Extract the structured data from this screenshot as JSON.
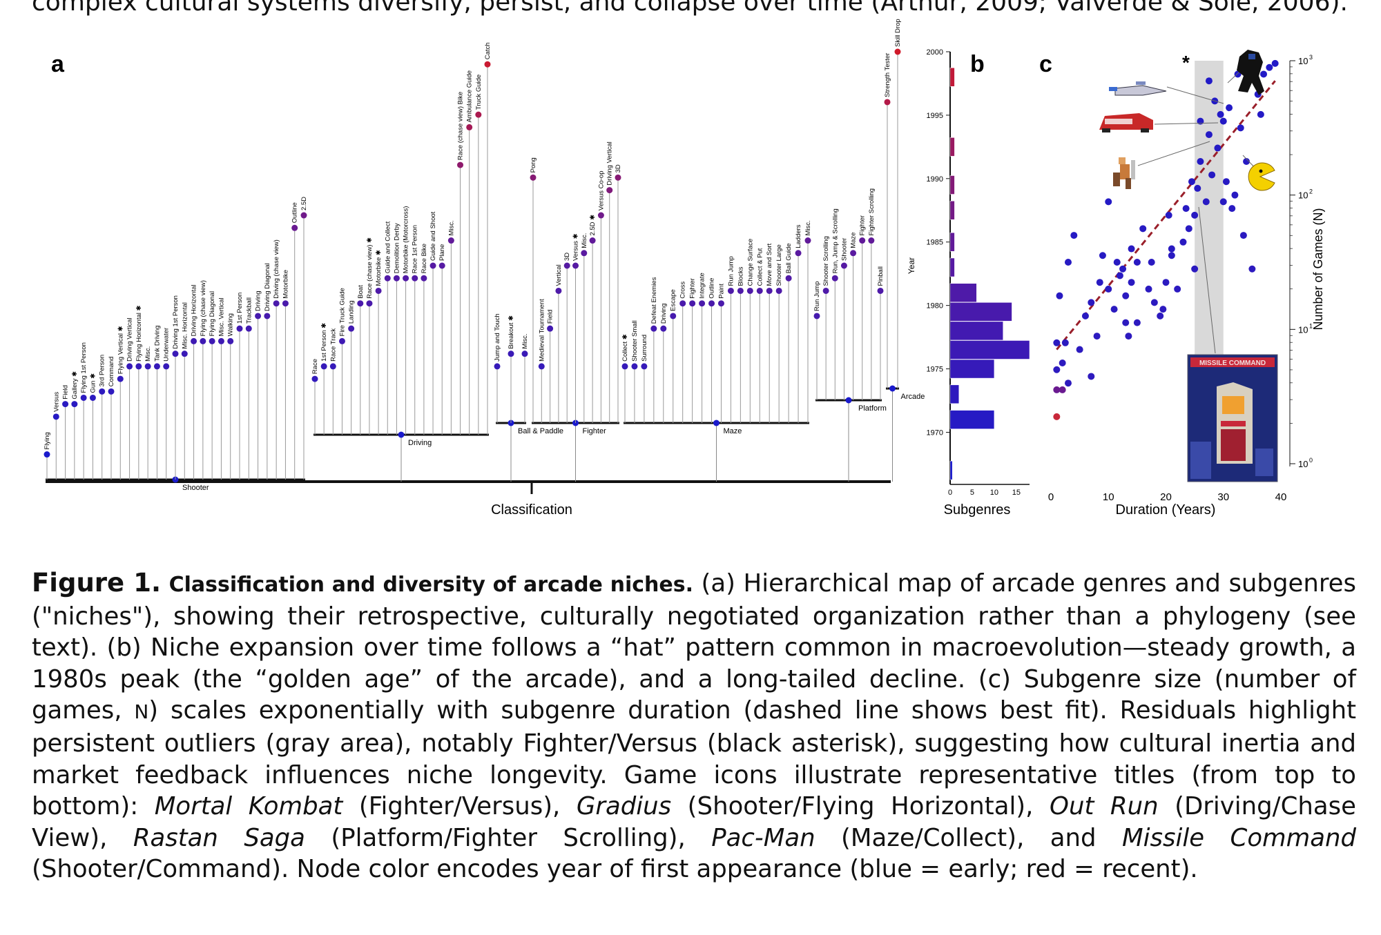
{
  "top_text": "complex cultural systems diversify, persist, and collapse over time (Arthur, 2009; Valverde & Solé, 2006).",
  "panel_letters": {
    "a": "a",
    "b": "b",
    "c": "c"
  },
  "panel_a": {
    "axis_label": "Classification",
    "groups": [
      {
        "name": "Shooter",
        "leaves": [
          {
            "label": "Flying",
            "y": 1968
          },
          {
            "label": "Versus",
            "y": 1971
          },
          {
            "label": "Field",
            "y": 1972
          },
          {
            "label": "Gallery ✱",
            "y": 1972
          },
          {
            "label": "Flying 1st Person",
            "y": 1972.5
          },
          {
            "label": "Gun ✱",
            "y": 1972.5
          },
          {
            "label": "3rd Person",
            "y": 1973
          },
          {
            "label": "Command",
            "y": 1973
          },
          {
            "label": "Flying Vertical ✱",
            "y": 1974
          },
          {
            "label": "Driving Vertical",
            "y": 1975
          },
          {
            "label": "Flying Horizontal ✱",
            "y": 1975
          },
          {
            "label": "Misc.",
            "y": 1975
          },
          {
            "label": "Tank Driving",
            "y": 1975
          },
          {
            "label": "Underwater",
            "y": 1975
          },
          {
            "label": "Driving 1st Person",
            "y": 1976
          },
          {
            "label": "Misc. Horizontal",
            "y": 1976
          },
          {
            "label": "Driving Horizontal",
            "y": 1977
          },
          {
            "label": "Flying (chase view)",
            "y": 1977
          },
          {
            "label": "Flying Diagonal",
            "y": 1977
          },
          {
            "label": "Misc. Vertical",
            "y": 1977
          },
          {
            "label": "Walking",
            "y": 1977
          },
          {
            "label": "1st Person",
            "y": 1978
          },
          {
            "label": "Trackball",
            "y": 1978
          },
          {
            "label": "Driving",
            "y": 1979
          },
          {
            "label": "Driving Diagonal",
            "y": 1979
          },
          {
            "label": "Driving (chase view)",
            "y": 1980
          },
          {
            "label": "Motorbike",
            "y": 1980
          },
          {
            "label": "Outline",
            "y": 1986
          },
          {
            "label": "2.5D",
            "y": 1987
          }
        ]
      },
      {
        "name": "Driving",
        "leaves": [
          {
            "label": "Race",
            "y": 1974
          },
          {
            "label": "1st Person ✱",
            "y": 1975
          },
          {
            "label": "Race Track",
            "y": 1975
          },
          {
            "label": "Fire Truck Guide",
            "y": 1977
          },
          {
            "label": "Landing",
            "y": 1978
          },
          {
            "label": "Boat",
            "y": 1980
          },
          {
            "label": "Race (chase view) ✱",
            "y": 1980
          },
          {
            "label": "Motorbike ✱",
            "y": 1981
          },
          {
            "label": "Guide and Collect",
            "y": 1982
          },
          {
            "label": "Demolition Derby",
            "y": 1982
          },
          {
            "label": "Motorbike (Motorcross)",
            "y": 1982
          },
          {
            "label": "Race 1st Person",
            "y": 1982
          },
          {
            "label": "Race Bike",
            "y": 1982
          },
          {
            "label": "Guide and Shoot",
            "y": 1983
          },
          {
            "label": "Plane",
            "y": 1983
          },
          {
            "label": "Misc.",
            "y": 1985
          },
          {
            "label": "Race (chase view) Bike",
            "y": 1991
          },
          {
            "label": "Ambulance Guide",
            "y": 1994
          },
          {
            "label": "Truck Guide",
            "y": 1995
          },
          {
            "label": "Catch",
            "y": 1999
          }
        ]
      },
      {
        "name": "Ball & Paddle",
        "leaves": [
          {
            "label": "Jump and Touch",
            "y": 1975
          },
          {
            "label": "Breakout ✱",
            "y": 1976
          },
          {
            "label": "Misc.",
            "y": 1976
          }
        ]
      },
      {
        "name": "Fighter",
        "leaves": [
          {
            "label": "Pong",
            "y": 1990
          },
          {
            "label": "Medieval Tournament",
            "y": 1975
          },
          {
            "label": "Field",
            "y": 1978
          },
          {
            "label": "Vertical",
            "y": 1981
          },
          {
            "label": "3D",
            "y": 1983
          },
          {
            "label": "Versus ✱",
            "y": 1983
          },
          {
            "label": "Misc.",
            "y": 1984
          },
          {
            "label": "2.5D ✱",
            "y": 1985
          },
          {
            "label": "Versus Co-op",
            "y": 1987
          },
          {
            "label": "Driving Vertical",
            "y": 1989
          },
          {
            "label": "3D",
            "y": 1990
          }
        ]
      },
      {
        "name": "Maze",
        "leaves": [
          {
            "label": "Collect ✱",
            "y": 1975
          },
          {
            "label": "Shooter Small",
            "y": 1975
          },
          {
            "label": "Surround",
            "y": 1975
          },
          {
            "label": "Defeat Enemies",
            "y": 1978
          },
          {
            "label": "Driving",
            "y": 1978
          },
          {
            "label": "Escape",
            "y": 1979
          },
          {
            "label": "Cross",
            "y": 1980
          },
          {
            "label": "Fighter",
            "y": 1980
          },
          {
            "label": "Integrate",
            "y": 1980
          },
          {
            "label": "Outline",
            "y": 1980
          },
          {
            "label": "Paint",
            "y": 1980
          },
          {
            "label": "Run Jump",
            "y": 1981
          },
          {
            "label": "Blocks",
            "y": 1981
          },
          {
            "label": "Change Surface",
            "y": 1981
          },
          {
            "label": "Collect & Put",
            "y": 1981
          },
          {
            "label": "Move and Sort",
            "y": 1981
          },
          {
            "label": "Shooter Large",
            "y": 1981
          },
          {
            "label": "Ball Guide",
            "y": 1982
          },
          {
            "label": "Ladders",
            "y": 1984
          },
          {
            "label": "Misc.",
            "y": 1985
          }
        ]
      },
      {
        "name": "Platform",
        "leaves": [
          {
            "label": "Run Jump",
            "y": 1979
          },
          {
            "label": "Shooter Scrolling",
            "y": 1981
          },
          {
            "label": "Run, Jump & Scrolling",
            "y": 1982
          },
          {
            "label": "Shooter",
            "y": 1983
          },
          {
            "label": "Maze",
            "y": 1984
          },
          {
            "label": "Fighter",
            "y": 1985
          },
          {
            "label": "Fighter Scrolling",
            "y": 1985
          },
          {
            "label": "Pinball",
            "y": 1981
          }
        ]
      },
      {
        "name": "Arcade",
        "leaves": [
          {
            "label": "Strength Tester",
            "y": 1996
          },
          {
            "label": "Skill Drop",
            "y": 2000
          }
        ]
      }
    ]
  },
  "panel_b": {
    "type": "bar",
    "xlabel": "Subgenres",
    "ylabel": "Year",
    "y_ticks": [
      1970,
      1975,
      1980,
      1985,
      1990,
      1995,
      2000
    ],
    "x_ticks": [
      0,
      5,
      10,
      15
    ],
    "xlim": [
      0,
      18
    ],
    "ylim": [
      1966,
      2000
    ],
    "bars": [
      {
        "year": 1967,
        "value": 0.5
      },
      {
        "year": 1971,
        "value": 10
      },
      {
        "year": 1973,
        "value": 2
      },
      {
        "year": 1975,
        "value": 10
      },
      {
        "year": 1976.5,
        "value": 18
      },
      {
        "year": 1978,
        "value": 12
      },
      {
        "year": 1979.5,
        "value": 14
      },
      {
        "year": 1981,
        "value": 6
      },
      {
        "year": 1983,
        "value": 1
      },
      {
        "year": 1985,
        "value": 1
      },
      {
        "year": 1987.5,
        "value": 1
      },
      {
        "year": 1989.5,
        "value": 1
      },
      {
        "year": 1992.5,
        "value": 1
      },
      {
        "year": 1998,
        "value": 1
      }
    ]
  },
  "panel_c": {
    "type": "scatter",
    "xlabel": "Duration (Years)",
    "ylabel": "Number of Games (N)",
    "x_ticks": [
      0,
      10,
      20,
      30,
      40
    ],
    "xlim": [
      0,
      40
    ],
    "ylim_log10": [
      0,
      3
    ],
    "y_tick_labels": [
      "10",
      "10",
      "10",
      "10"
    ],
    "y_tick_exps": [
      "0",
      "1",
      "2",
      "3"
    ],
    "shaded_x": [
      25,
      30
    ],
    "asterisk": "*",
    "fit_line": {
      "x0": 1,
      "logy0": 0.85,
      "x1": 39,
      "logy1": 2.85
    },
    "points": [
      [
        1,
        0.35
      ],
      [
        1,
        0.55
      ],
      [
        1,
        0.7
      ],
      [
        1,
        0.9
      ],
      [
        2,
        0.55
      ],
      [
        2,
        0.75
      ],
      [
        2.5,
        0.9
      ],
      [
        3,
        0.6
      ],
      [
        5,
        0.85
      ],
      [
        7,
        0.65
      ],
      [
        1.5,
        1.25
      ],
      [
        3,
        1.5
      ],
      [
        4,
        1.7
      ],
      [
        6,
        1.1
      ],
      [
        7,
        1.2
      ],
      [
        8,
        0.95
      ],
      [
        8.5,
        1.35
      ],
      [
        9,
        1.55
      ],
      [
        10,
        1.3
      ],
      [
        10,
        1.95
      ],
      [
        11,
        1.15
      ],
      [
        11.5,
        1.5
      ],
      [
        12,
        1.4
      ],
      [
        12.5,
        1.45
      ],
      [
        13,
        1.25
      ],
      [
        13,
        1.05
      ],
      [
        13.5,
        0.95
      ],
      [
        14,
        1.6
      ],
      [
        14,
        1.35
      ],
      [
        15,
        1.05
      ],
      [
        15,
        1.5
      ],
      [
        16,
        1.75
      ],
      [
        17,
        1.3
      ],
      [
        17.5,
        1.5
      ],
      [
        18,
        1.2
      ],
      [
        19,
        1.1
      ],
      [
        19.5,
        1.15
      ],
      [
        20,
        1.35
      ],
      [
        20.5,
        1.85
      ],
      [
        21,
        1.55
      ],
      [
        21,
        1.6
      ],
      [
        22,
        1.3
      ],
      [
        23,
        1.65
      ],
      [
        23.5,
        1.9
      ],
      [
        24,
        1.75
      ],
      [
        24.5,
        2.1
      ],
      [
        25,
        1.45
      ],
      [
        25,
        1.85
      ],
      [
        25.5,
        2.05
      ],
      [
        26,
        2.25
      ],
      [
        26,
        2.55
      ],
      [
        27,
        1.95
      ],
      [
        27.5,
        2.45
      ],
      [
        27.5,
        2.85
      ],
      [
        28,
        2.15
      ],
      [
        28.5,
        2.7
      ],
      [
        29,
        2.35
      ],
      [
        29.5,
        2.6
      ],
      [
        30,
        2.55
      ],
      [
        30,
        1.95
      ],
      [
        30.5,
        2.1
      ],
      [
        31,
        2.65
      ],
      [
        31.5,
        1.9
      ],
      [
        32,
        2.0
      ],
      [
        32.5,
        2.9
      ],
      [
        33,
        2.5
      ],
      [
        33.5,
        1.7
      ],
      [
        34,
        2.25
      ],
      [
        35,
        1.45
      ],
      [
        36,
        2.75
      ],
      [
        36.5,
        2.6
      ],
      [
        37,
        2.9
      ],
      [
        38,
        2.95
      ],
      [
        39,
        2.98
      ]
    ]
  },
  "caption": {
    "fig_num": "Figure 1.",
    "fig_title": "Classification and diversity of arcade niches.",
    "p1": " (a) Hierarchical map of arcade genres and subgenres (\"niches\"), showing their retrospective, culturally negotiated organization rather than a phylogeny (see text). (b) Niche expansion over time follows a “hat” pattern common in macroevolution—steady growth, a 1980s peak (the “golden age” of the arcade), and a long-tailed decline. (c) Subgenre size (number of games, ",
    "n_sym": "N",
    "p2": ") scales exponentially with subgenre duration (dashed line shows best fit). Residuals highlight persistent outliers (gray area), notably Fighter/Versus (black asterisk), suggesting how cultural inertia and market feedback influences niche longevity. Game icons illustrate representative titles (from top to bottom): ",
    "t1": "Mortal Kombat",
    "s1": " (Fighter/Versus), ",
    "t2": "Gradius",
    "s2": " (Shooter/Flying Horizontal), ",
    "t3": "Out Run",
    "s3": " (Driving/Chase View), ",
    "t4": "Rastan Saga",
    "s4": " (Platform/Fighter Scrolling), ",
    "t5": "Pac-Man",
    "s5": " (Maze/Collect), and ",
    "t6": "Missile Command",
    "s6": " (Shooter/Command). Node color encodes year of first appearance (blue = early; red = recent)."
  },
  "colors": {
    "early": "#1a1acc",
    "mid": "#5a1aa0",
    "late": "#d01a2a",
    "axis": "#111111",
    "shade": "#d9d9d9",
    "fit": "#9a1f2a"
  }
}
